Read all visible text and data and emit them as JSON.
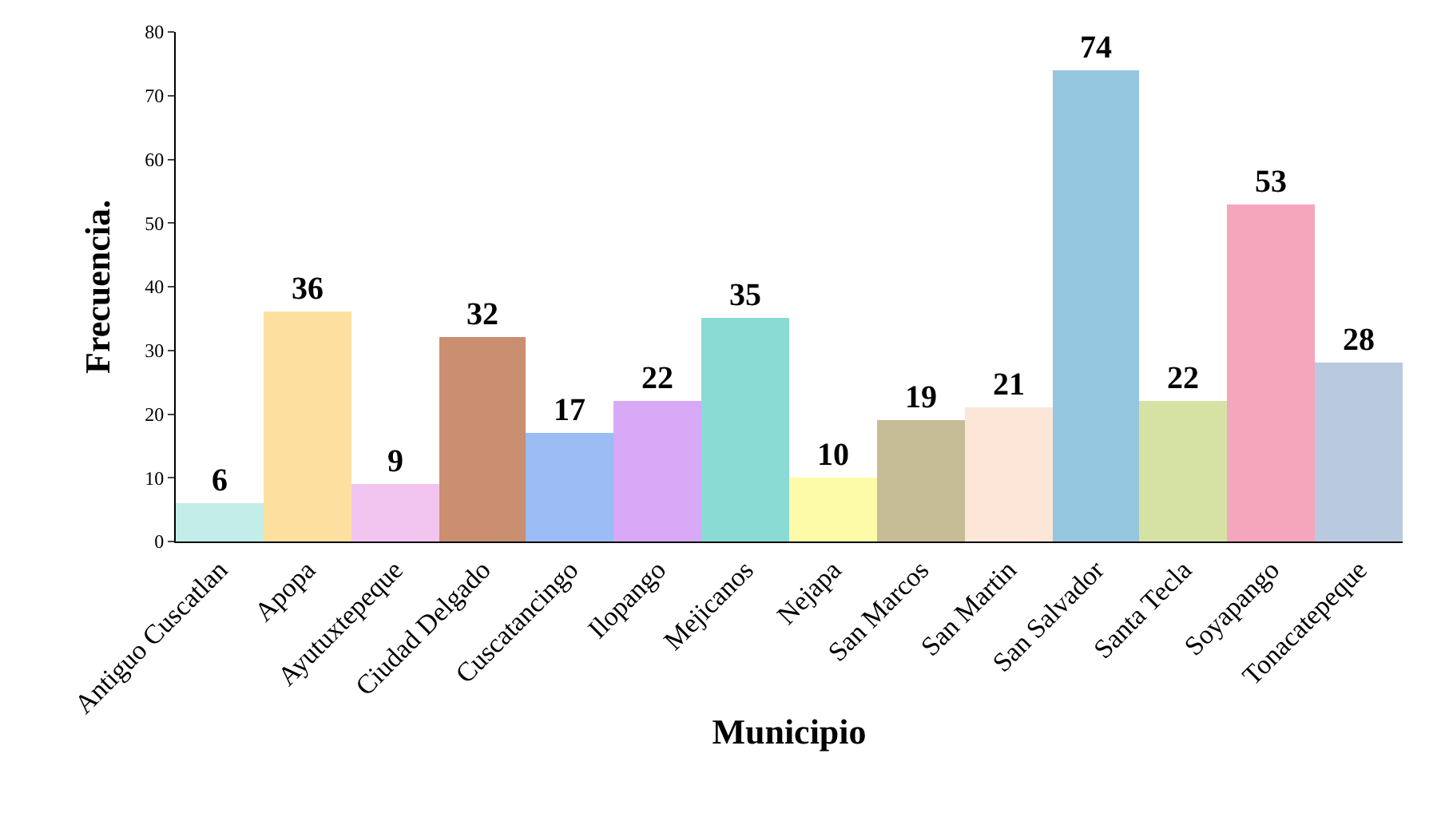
{
  "chart_data": {
    "type": "bar",
    "xlabel": "Municipio",
    "ylabel": "Frecuencia.",
    "categories": [
      "Antiguo Cuscatlan",
      "Apopa",
      "Ayutuxtepeque",
      "Ciudad Delgado",
      "Cuscatancingo",
      "Ilopango",
      "Mejicanos",
      "Nejapa",
      "San Marcos",
      "San Martin",
      "San Salvador",
      "Santa Tecla",
      "Soyapango",
      "Tonacatepeque"
    ],
    "values": [
      6,
      36,
      9,
      32,
      17,
      22,
      35,
      10,
      19,
      21,
      74,
      22,
      53,
      28
    ],
    "colors": [
      "#c3ede9",
      "#fde0a0",
      "#f2c4f0",
      "#c98f70",
      "#9bbcf5",
      "#d7a9f7",
      "#8adbd4",
      "#fdfba8",
      "#c6bc96",
      "#fbe6d8",
      "#95c6e0",
      "#d5e2a4",
      "#f4a7bc",
      "#b9c9e0"
    ],
    "ylim": [
      0,
      80
    ],
    "yticks": [
      0,
      10,
      20,
      30,
      40,
      50,
      60,
      70,
      80
    ],
    "data_labels": true
  }
}
